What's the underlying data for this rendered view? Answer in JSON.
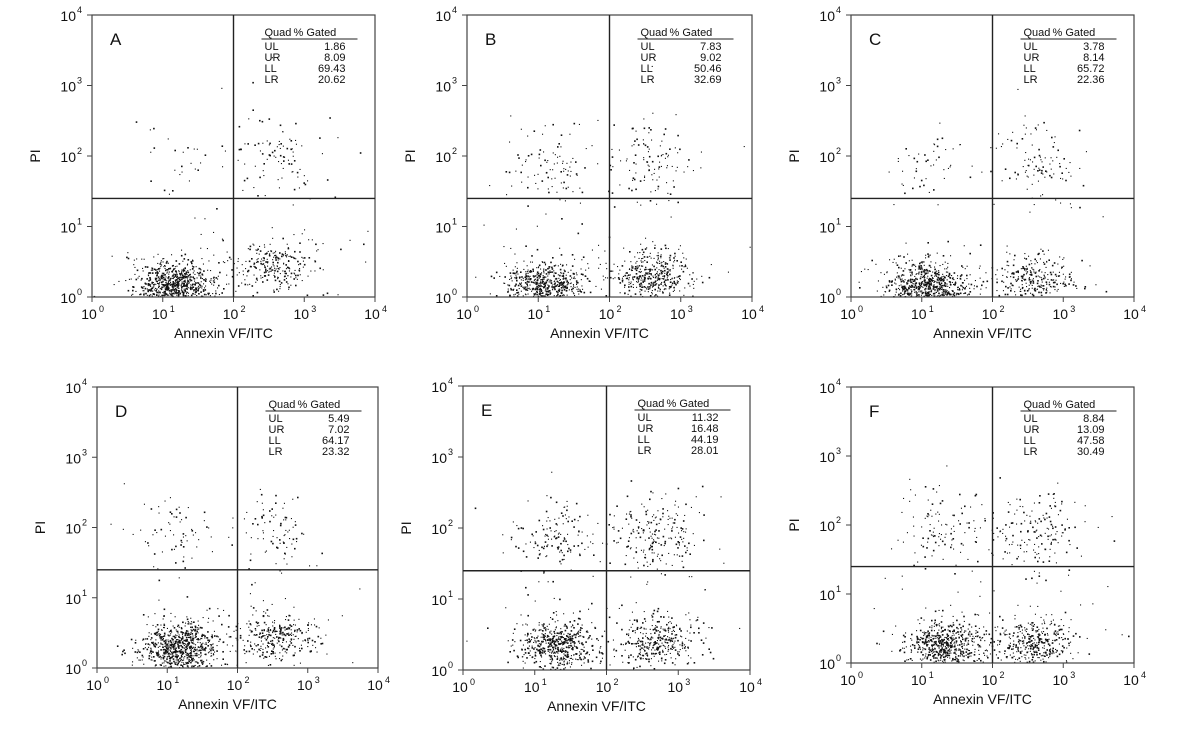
{
  "chart_data": [
    {
      "type": "scatter",
      "panel_label": "A",
      "xlabel": "Annexin VF/ITC",
      "ylabel": "PI",
      "x_scale": "log",
      "y_scale": "log",
      "xlim": [
        1,
        10000
      ],
      "ylim": [
        1,
        10000
      ],
      "x_ticks": [
        {
          "base": "10",
          "exp": "0"
        },
        {
          "base": "10",
          "exp": "1"
        },
        {
          "base": "10",
          "exp": "2"
        },
        {
          "base": "10",
          "exp": "3"
        },
        {
          "base": "10",
          "exp": "4"
        }
      ],
      "y_ticks": [
        {
          "base": "10",
          "exp": "0"
        },
        {
          "base": "10",
          "exp": "1"
        },
        {
          "base": "10",
          "exp": "2"
        },
        {
          "base": "10",
          "exp": "3"
        },
        {
          "base": "10",
          "exp": "4"
        }
      ],
      "quadrant_gate": {
        "x": 100,
        "y": 25
      },
      "table": {
        "headers": [
          "Quad",
          "% Gated"
        ],
        "rows": [
          [
            "UL",
            "1.86"
          ],
          [
            "UR",
            "8.09"
          ],
          [
            "LL",
            "69.43"
          ],
          [
            "LR",
            "20.62"
          ]
        ]
      },
      "clusters": [
        {
          "x": 15,
          "y": 1.4,
          "pct": 69.43
        },
        {
          "x": 400,
          "y": 3,
          "pct": 20.62
        },
        {
          "x": 15,
          "y": 90,
          "pct": 1.86
        },
        {
          "x": 400,
          "y": 90,
          "pct": 8.09
        }
      ]
    },
    {
      "type": "scatter",
      "panel_label": "B",
      "xlabel": "Annexin VF/ITC",
      "ylabel": "PI",
      "x_scale": "log",
      "y_scale": "log",
      "xlim": [
        1,
        10000
      ],
      "ylim": [
        1,
        10000
      ],
      "x_ticks": [
        {
          "base": "10",
          "exp": "0"
        },
        {
          "base": "10",
          "exp": "1"
        },
        {
          "base": "10",
          "exp": "2"
        },
        {
          "base": "10",
          "exp": "3"
        },
        {
          "base": "10",
          "exp": "4"
        }
      ],
      "y_ticks": [
        {
          "base": "10",
          "exp": "0"
        },
        {
          "base": "10",
          "exp": "1"
        },
        {
          "base": "10",
          "exp": "2"
        },
        {
          "base": "10",
          "exp": "3"
        },
        {
          "base": "10",
          "exp": "4"
        }
      ],
      "quadrant_gate": {
        "x": 100,
        "y": 25
      },
      "table": {
        "headers": [
          "Quad",
          "% Gated"
        ],
        "rows": [
          [
            "UL",
            "7.83"
          ],
          [
            "UR",
            "9.02"
          ],
          [
            "LL",
            "50.46"
          ],
          [
            "LR",
            "32.69"
          ]
        ]
      },
      "clusters": [
        {
          "x": 12,
          "y": 1.5,
          "pct": 50.46
        },
        {
          "x": 400,
          "y": 2,
          "pct": 32.69
        },
        {
          "x": 15,
          "y": 80,
          "pct": 7.83
        },
        {
          "x": 400,
          "y": 80,
          "pct": 9.02
        }
      ]
    },
    {
      "type": "scatter",
      "panel_label": "C",
      "xlabel": "Annexin VF/ITC",
      "ylabel": "PI",
      "x_scale": "log",
      "y_scale": "log",
      "xlim": [
        1,
        10000
      ],
      "ylim": [
        1,
        10000
      ],
      "x_ticks": [
        {
          "base": "10",
          "exp": "0"
        },
        {
          "base": "10",
          "exp": "1"
        },
        {
          "base": "10",
          "exp": "2"
        },
        {
          "base": "10",
          "exp": "3"
        },
        {
          "base": "10",
          "exp": "4"
        }
      ],
      "y_ticks": [
        {
          "base": "10",
          "exp": "0"
        },
        {
          "base": "10",
          "exp": "1"
        },
        {
          "base": "10",
          "exp": "2"
        },
        {
          "base": "10",
          "exp": "3"
        },
        {
          "base": "10",
          "exp": "4"
        }
      ],
      "quadrant_gate": {
        "x": 100,
        "y": 25
      },
      "table": {
        "headers": [
          "Quad",
          "% Gated"
        ],
        "rows": [
          [
            "UL",
            "3.78"
          ],
          [
            "UR",
            "8.14"
          ],
          [
            "LL",
            "65.72"
          ],
          [
            "LR",
            "22.36"
          ]
        ]
      },
      "clusters": [
        {
          "x": 12,
          "y": 1.4,
          "pct": 65.72
        },
        {
          "x": 400,
          "y": 1.8,
          "pct": 22.36
        },
        {
          "x": 15,
          "y": 80,
          "pct": 3.78
        },
        {
          "x": 400,
          "y": 80,
          "pct": 8.14
        }
      ]
    },
    {
      "type": "scatter",
      "panel_label": "D",
      "xlabel": "Annexin VF/ITC",
      "ylabel": "PI",
      "x_scale": "log",
      "y_scale": "log",
      "xlim": [
        1,
        10000
      ],
      "ylim": [
        1,
        10000
      ],
      "x_ticks": [
        {
          "base": "10",
          "exp": "0"
        },
        {
          "base": "10",
          "exp": "1"
        },
        {
          "base": "10",
          "exp": "2"
        },
        {
          "base": "10",
          "exp": "3"
        },
        {
          "base": "10",
          "exp": "4"
        }
      ],
      "y_ticks": [
        {
          "base": "10",
          "exp": "0"
        },
        {
          "base": "10",
          "exp": "1"
        },
        {
          "base": "10",
          "exp": "2"
        },
        {
          "base": "10",
          "exp": "3"
        },
        {
          "base": "10",
          "exp": "4"
        }
      ],
      "quadrant_gate": {
        "x": 100,
        "y": 25
      },
      "table": {
        "headers": [
          "Quad",
          "% Gated"
        ],
        "rows": [
          [
            "UL",
            "5.49"
          ],
          [
            "UR",
            "7.02"
          ],
          [
            "LL",
            "64.17"
          ],
          [
            "LR",
            "23.32"
          ]
        ]
      },
      "clusters": [
        {
          "x": 15,
          "y": 2,
          "pct": 64.17
        },
        {
          "x": 350,
          "y": 2.8,
          "pct": 23.32
        },
        {
          "x": 15,
          "y": 80,
          "pct": 5.49
        },
        {
          "x": 350,
          "y": 80,
          "pct": 7.02
        }
      ]
    },
    {
      "type": "scatter",
      "panel_label": "E",
      "xlabel": "Annexin VF/ITC",
      "ylabel": "PI",
      "x_scale": "log",
      "y_scale": "log",
      "xlim": [
        1,
        10000
      ],
      "ylim": [
        1,
        10000
      ],
      "x_ticks": [
        {
          "base": "10",
          "exp": "0"
        },
        {
          "base": "10",
          "exp": "1"
        },
        {
          "base": "10",
          "exp": "2"
        },
        {
          "base": "10",
          "exp": "3"
        },
        {
          "base": "10",
          "exp": "4"
        }
      ],
      "y_ticks": [
        {
          "base": "10",
          "exp": "0"
        },
        {
          "base": "10",
          "exp": "1"
        },
        {
          "base": "10",
          "exp": "2"
        },
        {
          "base": "10",
          "exp": "3"
        },
        {
          "base": "10",
          "exp": "4"
        }
      ],
      "quadrant_gate": {
        "x": 100,
        "y": 25
      },
      "table": {
        "headers": [
          "Quad",
          "% Gated"
        ],
        "rows": [
          [
            "UL",
            "11.32"
          ],
          [
            "UR",
            "16.48"
          ],
          [
            "LL",
            "44.19"
          ],
          [
            "LR",
            "28.01"
          ]
        ]
      },
      "clusters": [
        {
          "x": 20,
          "y": 2.2,
          "pct": 44.19
        },
        {
          "x": 500,
          "y": 2.6,
          "pct": 28.01
        },
        {
          "x": 20,
          "y": 80,
          "pct": 11.32
        },
        {
          "x": 500,
          "y": 80,
          "pct": 16.48
        }
      ]
    },
    {
      "type": "scatter",
      "panel_label": "F",
      "xlabel": "Annexin VF/ITC",
      "ylabel": "PI",
      "x_scale": "log",
      "y_scale": "log",
      "xlim": [
        1,
        10000
      ],
      "ylim": [
        1,
        10000
      ],
      "x_ticks": [
        {
          "base": "10",
          "exp": "0"
        },
        {
          "base": "10",
          "exp": "1"
        },
        {
          "base": "10",
          "exp": "2"
        },
        {
          "base": "10",
          "exp": "3"
        },
        {
          "base": "10",
          "exp": "4"
        }
      ],
      "y_ticks": [
        {
          "base": "10",
          "exp": "0"
        },
        {
          "base": "10",
          "exp": "1"
        },
        {
          "base": "10",
          "exp": "2"
        },
        {
          "base": "10",
          "exp": "3"
        },
        {
          "base": "10",
          "exp": "4"
        }
      ],
      "quadrant_gate": {
        "x": 100,
        "y": 25
      },
      "table": {
        "headers": [
          "Quad",
          "% Gated"
        ],
        "rows": [
          [
            "UL",
            "8.84"
          ],
          [
            "UR",
            "13.09"
          ],
          [
            "LL",
            "47.58"
          ],
          [
            "LR",
            "30.49"
          ]
        ]
      },
      "clusters": [
        {
          "x": 20,
          "y": 1.8,
          "pct": 47.58
        },
        {
          "x": 400,
          "y": 2,
          "pct": 30.49
        },
        {
          "x": 20,
          "y": 80,
          "pct": 8.84
        },
        {
          "x": 400,
          "y": 80,
          "pct": 13.09
        }
      ]
    }
  ]
}
